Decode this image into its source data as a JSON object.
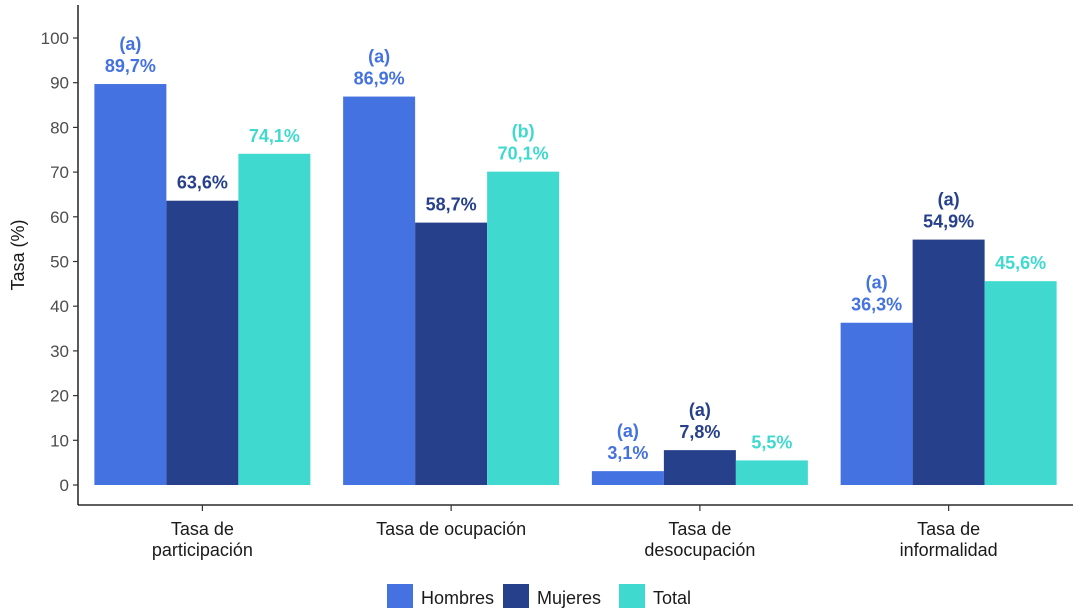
{
  "chart_data": {
    "type": "bar",
    "ylabel": "Tasa (%)",
    "xlabel": "",
    "ylim": [
      0,
      100
    ],
    "yticks": [
      0,
      10,
      20,
      30,
      40,
      50,
      60,
      70,
      80,
      90,
      100
    ],
    "grid": false,
    "legend_position": "bottom",
    "categories": [
      [
        "Tasa de",
        "participación"
      ],
      [
        "Tasa de ocupación"
      ],
      [
        "Tasa de",
        "desocupación"
      ],
      [
        "Tasa de",
        "informalidad"
      ]
    ],
    "series": [
      {
        "name": "Hombres",
        "color": "#4472E0",
        "values": [
          89.7,
          86.9,
          3.1,
          36.3
        ],
        "labels": [
          "89,7%",
          "86,9%",
          "3,1%",
          "36,3%"
        ],
        "notes": [
          "(a)",
          "(a)",
          "(a)",
          "(a)"
        ]
      },
      {
        "name": "Mujeres",
        "color": "#27408B",
        "values": [
          63.6,
          58.7,
          7.8,
          54.9
        ],
        "labels": [
          "63,6%",
          "58,7%",
          "7,8%",
          "54,9%"
        ],
        "notes": [
          "",
          "",
          "(a)",
          "(a)"
        ]
      },
      {
        "name": "Total",
        "color": "#40D9D0",
        "values": [
          74.1,
          70.1,
          5.5,
          45.6
        ],
        "labels": [
          "74,1%",
          "70,1%",
          "5,5%",
          "45,6%"
        ],
        "notes": [
          "",
          "(b)",
          "",
          ""
        ]
      }
    ]
  }
}
